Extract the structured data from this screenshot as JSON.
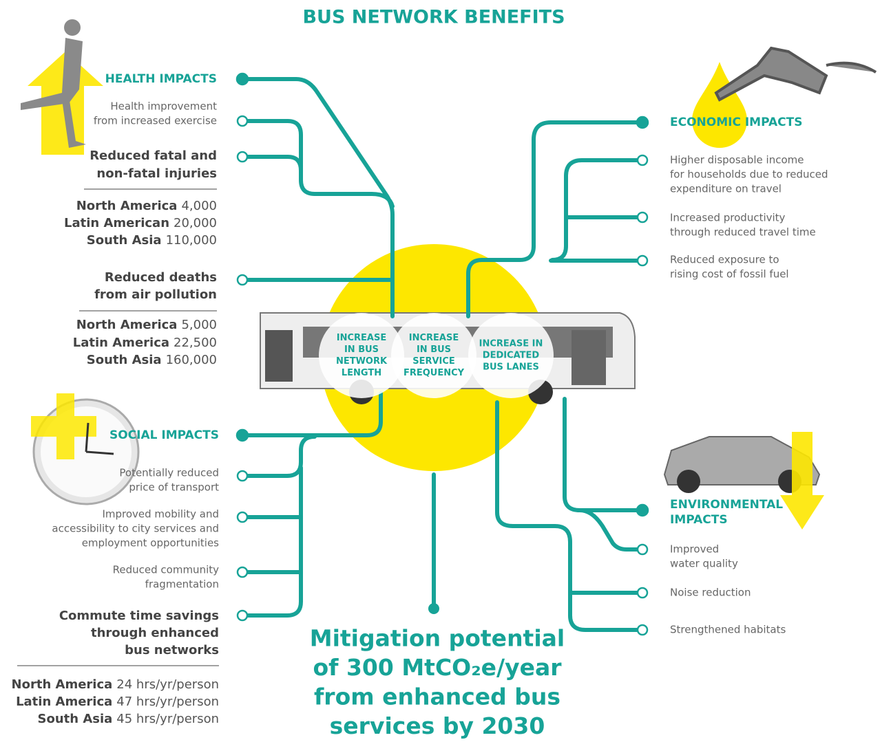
{
  "title": "BUS NETWORK BENEFITS",
  "health": {
    "heading": [
      "HEALTH IMPACTS"
    ],
    "items": [
      {
        "lines": [
          "Health improvement",
          "from increased exercise"
        ]
      },
      {
        "lines": [
          "Reduced fatal and",
          "non-fatal injuries"
        ],
        "stats": [
          {
            "region": "North America",
            "value": "4,000"
          },
          {
            "region": "Latin American",
            "value": "20,000"
          },
          {
            "region": "South Asia",
            "value": "110,000"
          }
        ]
      },
      {
        "lines": [
          "Reduced deaths",
          "from air pollution"
        ],
        "stats": [
          {
            "region": "North America",
            "value": "5,000"
          },
          {
            "region": "Latin America",
            "value": "22,500"
          },
          {
            "region": "South Asia",
            "value": "160,000"
          }
        ]
      }
    ]
  },
  "social": {
    "heading": [
      "SOCIAL IMPACTS"
    ],
    "items": [
      {
        "lines": [
          "Potentially reduced",
          "price of transport"
        ]
      },
      {
        "lines": [
          "Improved mobility and",
          "accessibility to city services and",
          "employment opportunities"
        ]
      },
      {
        "lines": [
          "Reduced community",
          "fragmentation"
        ]
      },
      {
        "lines": [
          "Commute time savings",
          "through enhanced",
          "bus networks"
        ],
        "stats": [
          {
            "region": "North America",
            "value": "24 hrs/yr/person"
          },
          {
            "region": "Latin America",
            "value": "47 hrs/yr/person"
          },
          {
            "region": "South Asia",
            "value": "45 hrs/yr/person"
          }
        ]
      }
    ]
  },
  "economic": {
    "heading": [
      "ECONOMIC IMPACTS"
    ],
    "items": [
      {
        "lines": [
          "Higher disposable income",
          "for households  due to reduced",
          "expenditure on travel"
        ]
      },
      {
        "lines": [
          "Increased productivity",
          "through reduced travel time"
        ]
      },
      {
        "lines": [
          "Reduced exposure to",
          "rising cost of fossil fuel"
        ]
      }
    ]
  },
  "environmental": {
    "heading": [
      "ENVIRONMENTAL",
      "IMPACTS"
    ],
    "items": [
      {
        "lines": [
          "Improved",
          "water quality"
        ]
      },
      {
        "lines": [
          "Noise reduction"
        ]
      },
      {
        "lines": [
          "Strengthened habitats"
        ]
      }
    ]
  },
  "levers": [
    [
      "INCREASE",
      "IN BUS",
      "NETWORK",
      "LENGTH"
    ],
    [
      "INCREASE",
      "IN BUS",
      "SERVICE",
      "FREQUENCY"
    ],
    [
      "INCREASE IN",
      "DEDICATED",
      "BUS LANES"
    ]
  ],
  "mitigation": [
    "Mitigation potential",
    "of 300 MtCO₂e/year",
    "from enhanced bus",
    "services by 2030"
  ]
}
